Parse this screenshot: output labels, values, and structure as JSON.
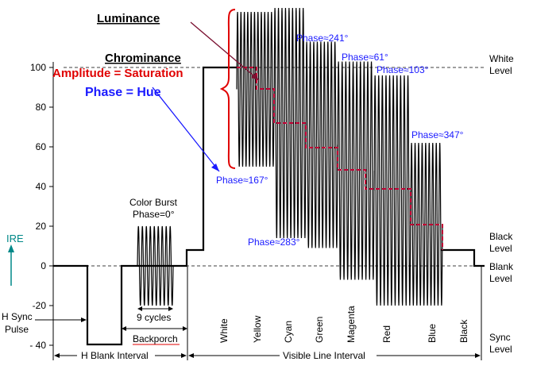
{
  "labels": {
    "luminance": "Luminance",
    "chrominance": "Chrominance",
    "amplitude_saturation": "Amplitude = Saturation",
    "phase_hue": "Phase = Hue",
    "color_burst_line1": "Color Burst",
    "color_burst_line2": "Phase=0°",
    "nine_cycles": "9 cycles",
    "backporch": "Backporch",
    "h_blank_interval": "H Blank Interval",
    "visible_line_interval": "Visible Line Interval",
    "h_sync_pulse_line1": "H Sync",
    "h_sync_pulse_line2": "Pulse",
    "ire": "IRE"
  },
  "level_labels": {
    "white": [
      "White",
      "Level"
    ],
    "black": [
      "Black",
      "Level"
    ],
    "blank": [
      "Blank",
      "Level"
    ],
    "sync": [
      "Sync",
      "Level"
    ]
  },
  "phases": {
    "yellow": "Phase≈167°",
    "cyan": "Phase≈283°",
    "green": "Phase≈241°",
    "magenta": "Phase≈61°",
    "red": "Phase≈103°",
    "blue": "Phase≈347°"
  },
  "axis": {
    "ticks": [
      100,
      80,
      60,
      40,
      20,
      0,
      -20,
      -40
    ],
    "tick_labels": [
      "100",
      "80",
      "60",
      "40",
      "20",
      "0",
      "-20",
      "- 40"
    ]
  },
  "bars": [
    {
      "name": "White",
      "luma": 100,
      "chroma": 0
    },
    {
      "name": "Yellow",
      "luma": 89,
      "chroma": 78
    },
    {
      "name": "Cyan",
      "luma": 72,
      "chroma": 116
    },
    {
      "name": "Green",
      "luma": 61,
      "chroma": 104
    },
    {
      "name": "Magenta",
      "luma": 48,
      "chroma": 110
    },
    {
      "name": "Red",
      "luma": 38,
      "chroma": 116
    },
    {
      "name": "Blue",
      "luma": 21,
      "chroma": 82
    },
    {
      "name": "Black",
      "luma": 7.5,
      "chroma": 0
    }
  ],
  "burst": {
    "level": 0,
    "amplitude": 40,
    "cycles": 9
  },
  "colors": {
    "signal": "#000000",
    "luminance_step": "#c00033",
    "amplitude_text": "#e00000",
    "phase_text": "#1a1aff",
    "brace": "#e00000",
    "ire_axis": "#008888",
    "luminance_pointer": "#7a1030"
  }
}
